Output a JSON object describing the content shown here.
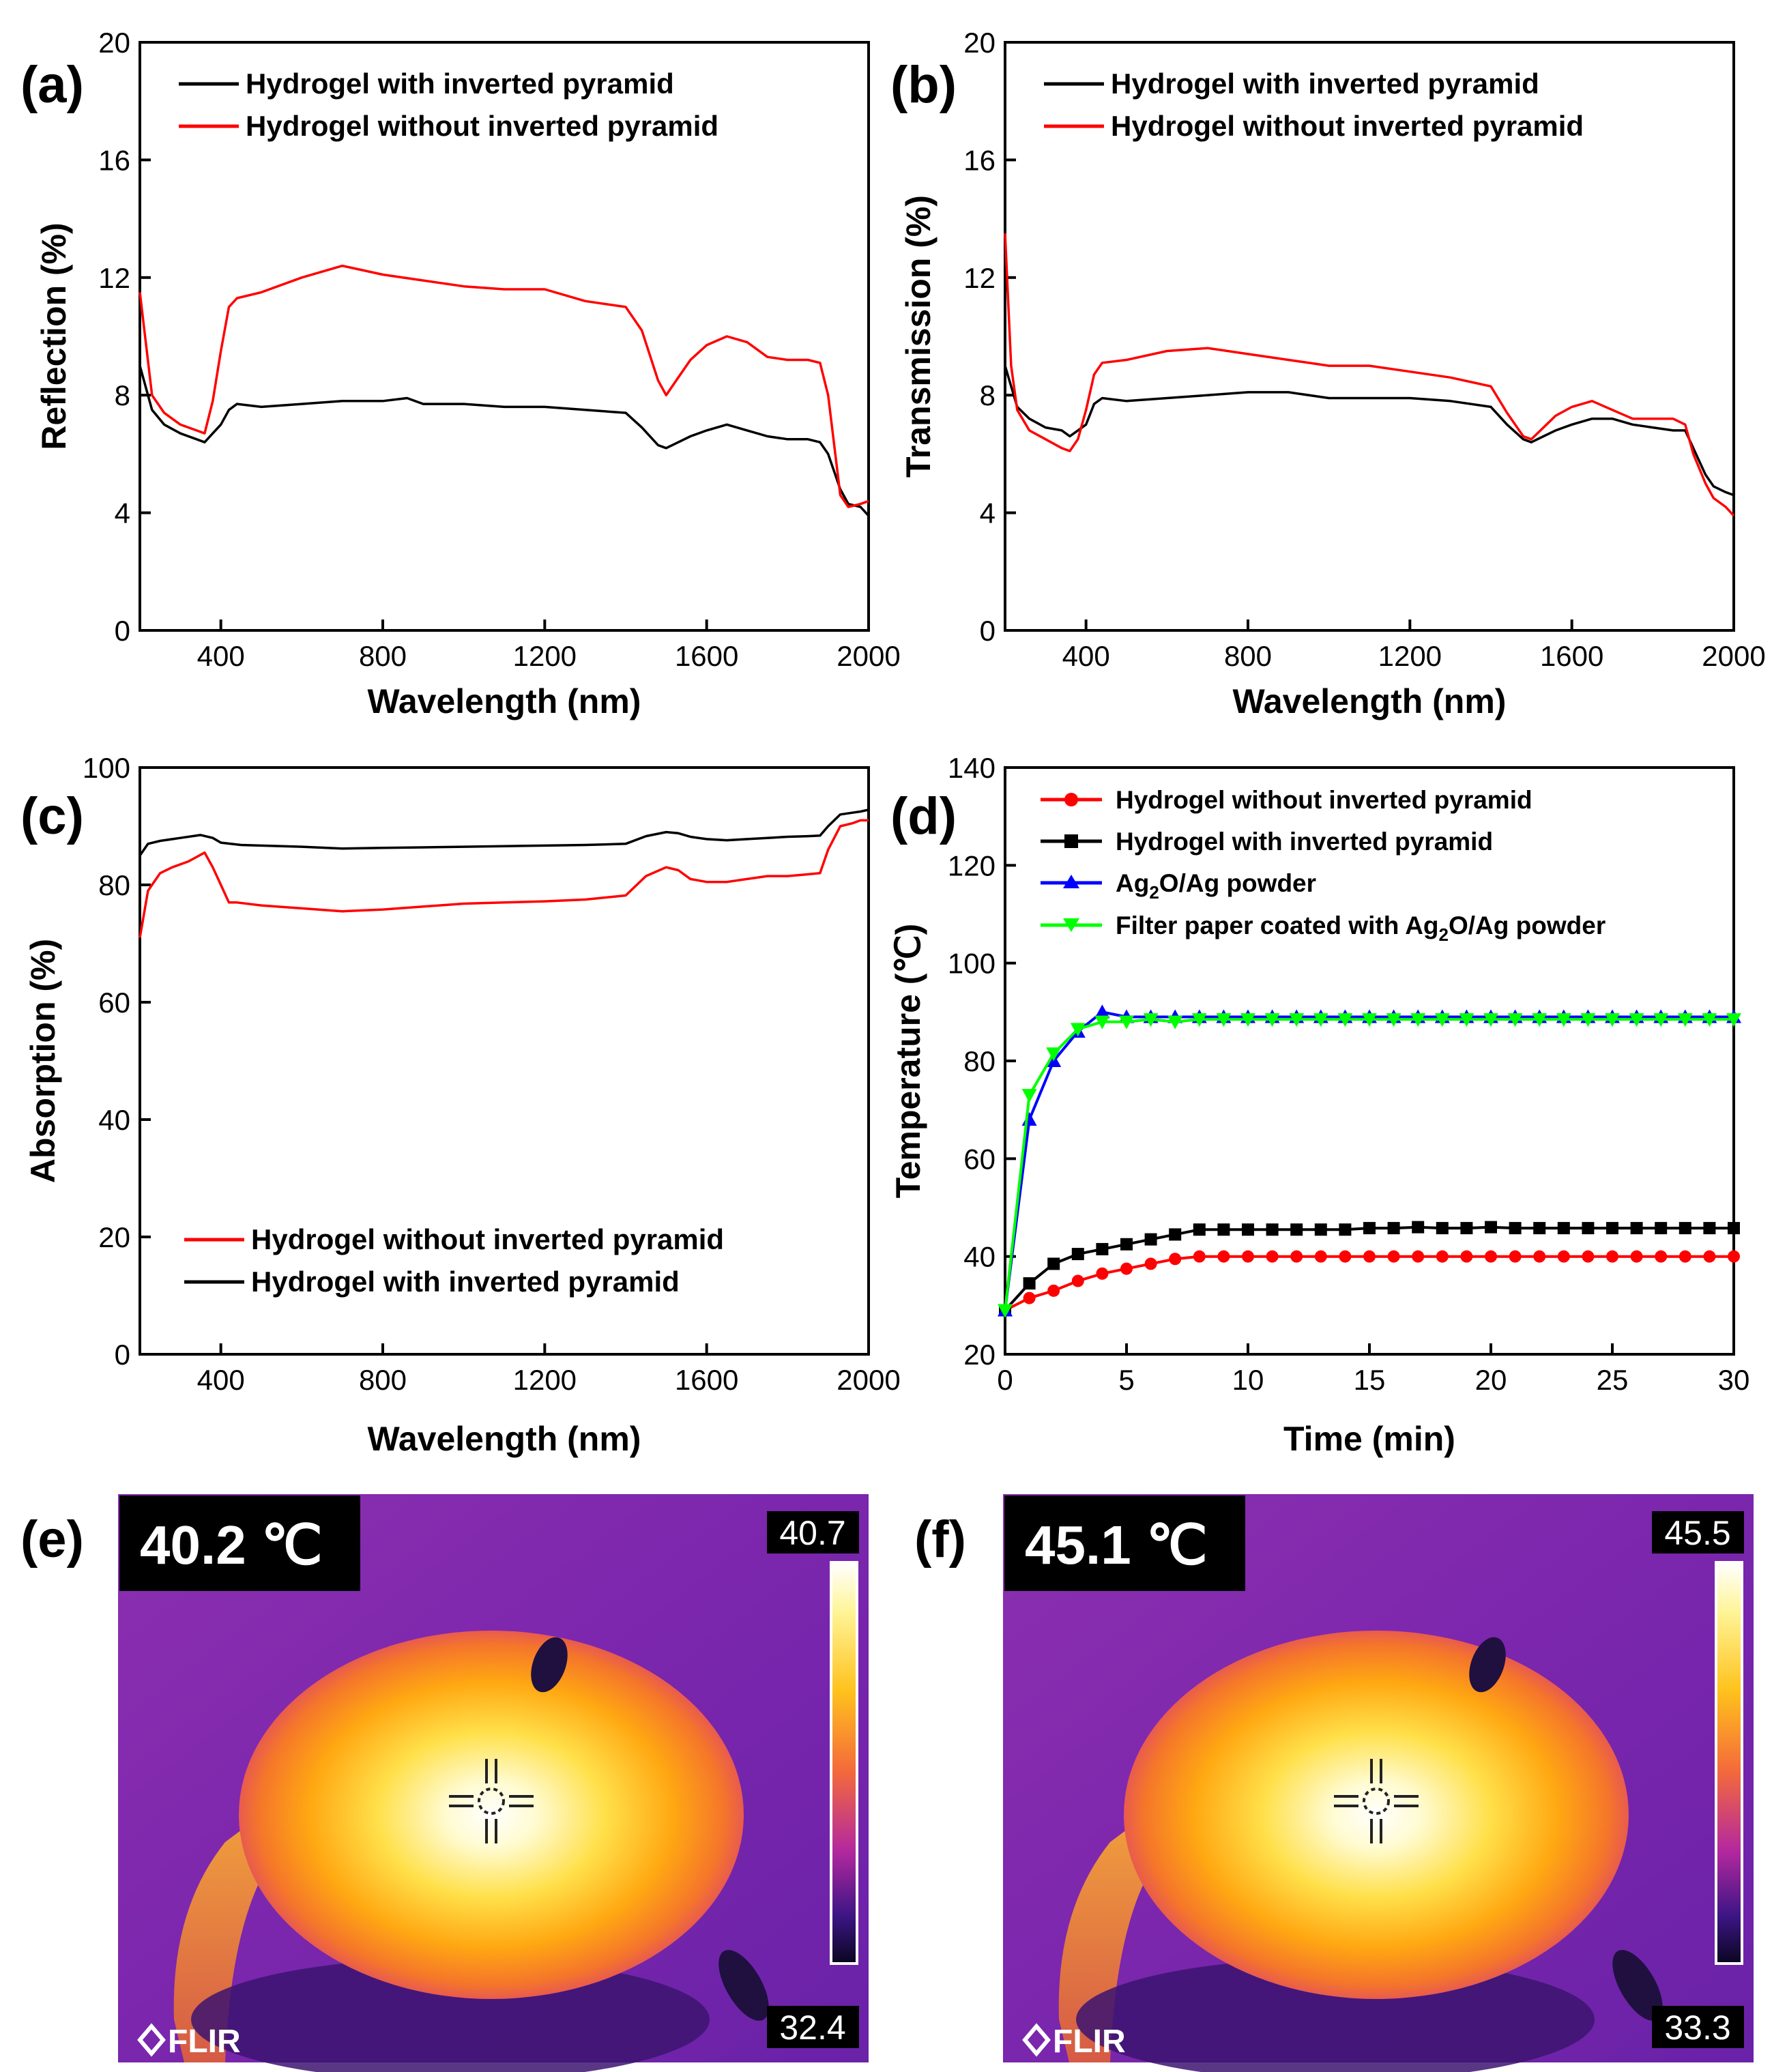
{
  "chart_data": [
    {
      "panel": "(a)",
      "type": "line",
      "xlabel": "Wavelength (nm)",
      "ylabel": "Reflection (%)",
      "xlim": [
        200,
        2000
      ],
      "ylim": [
        0,
        20
      ],
      "xticks": [
        400,
        800,
        1200,
        1600,
        2000
      ],
      "yticks": [
        0,
        4,
        8,
        12,
        16,
        20
      ],
      "legend_position": "top-left",
      "series": [
        {
          "name": "Hydrogel with inverted pyramid",
          "color": "#000000",
          "x": [
            200,
            230,
            260,
            300,
            340,
            360,
            380,
            400,
            420,
            440,
            500,
            600,
            700,
            800,
            860,
            900,
            1000,
            1100,
            1200,
            1300,
            1400,
            1440,
            1480,
            1500,
            1530,
            1560,
            1600,
            1650,
            1700,
            1750,
            1800,
            1850,
            1880,
            1900,
            1930,
            1950,
            1980,
            2000
          ],
          "y": [
            9.0,
            7.5,
            7.0,
            6.7,
            6.5,
            6.4,
            6.7,
            7.0,
            7.5,
            7.7,
            7.6,
            7.7,
            7.8,
            7.8,
            7.9,
            7.7,
            7.7,
            7.6,
            7.6,
            7.5,
            7.4,
            6.9,
            6.3,
            6.2,
            6.4,
            6.6,
            6.8,
            7.0,
            6.8,
            6.6,
            6.5,
            6.5,
            6.4,
            6.0,
            4.8,
            4.3,
            4.2,
            3.9
          ]
        },
        {
          "name": "Hydrogel without inverted pyramid",
          "color": "#ff0000",
          "x": [
            200,
            230,
            260,
            300,
            340,
            360,
            380,
            400,
            420,
            440,
            500,
            600,
            700,
            800,
            900,
            1000,
            1100,
            1200,
            1300,
            1400,
            1440,
            1480,
            1500,
            1530,
            1560,
            1600,
            1650,
            1700,
            1750,
            1800,
            1850,
            1880,
            1900,
            1930,
            1950,
            1980,
            2000
          ],
          "y": [
            11.5,
            8.0,
            7.4,
            7.0,
            6.8,
            6.7,
            7.8,
            9.5,
            11.0,
            11.3,
            11.5,
            12.0,
            12.4,
            12.1,
            11.9,
            11.7,
            11.6,
            11.6,
            11.2,
            11.0,
            10.2,
            8.5,
            8.0,
            8.6,
            9.2,
            9.7,
            10.0,
            9.8,
            9.3,
            9.2,
            9.2,
            9.1,
            8.0,
            4.6,
            4.2,
            4.3,
            4.4
          ]
        }
      ]
    },
    {
      "panel": "(b)",
      "type": "line",
      "xlabel": "Wavelength (nm)",
      "ylabel": "Transmission (%)",
      "xlim": [
        200,
        2000
      ],
      "ylim": [
        0,
        20
      ],
      "xticks": [
        400,
        800,
        1200,
        1600,
        2000
      ],
      "yticks": [
        0,
        4,
        8,
        12,
        16,
        20
      ],
      "legend_position": "top-left",
      "series": [
        {
          "name": "Hydrogel with inverted pyramid",
          "color": "#000000",
          "x": [
            200,
            230,
            260,
            300,
            340,
            360,
            380,
            400,
            420,
            440,
            500,
            600,
            700,
            800,
            900,
            1000,
            1100,
            1200,
            1300,
            1400,
            1440,
            1480,
            1500,
            1530,
            1560,
            1600,
            1650,
            1700,
            1750,
            1800,
            1850,
            1880,
            1900,
            1930,
            1950,
            1980,
            2000
          ],
          "y": [
            9.0,
            7.6,
            7.2,
            6.9,
            6.8,
            6.6,
            6.8,
            7.0,
            7.7,
            7.9,
            7.8,
            7.9,
            8.0,
            8.1,
            8.1,
            7.9,
            7.9,
            7.9,
            7.8,
            7.6,
            7.0,
            6.5,
            6.4,
            6.6,
            6.8,
            7.0,
            7.2,
            7.2,
            7.0,
            6.9,
            6.8,
            6.8,
            6.2,
            5.3,
            4.9,
            4.7,
            4.6
          ]
        },
        {
          "name": "Hydrogel without inverted pyramid",
          "color": "#ff0000",
          "x": [
            200,
            215,
            230,
            260,
            300,
            340,
            360,
            380,
            400,
            420,
            440,
            500,
            600,
            700,
            800,
            900,
            1000,
            1100,
            1200,
            1300,
            1400,
            1440,
            1480,
            1500,
            1530,
            1560,
            1600,
            1650,
            1700,
            1750,
            1800,
            1850,
            1880,
            1900,
            1930,
            1950,
            1980,
            2000
          ],
          "y": [
            13.5,
            9.0,
            7.5,
            6.8,
            6.5,
            6.2,
            6.1,
            6.5,
            7.5,
            8.7,
            9.1,
            9.2,
            9.5,
            9.6,
            9.4,
            9.2,
            9.0,
            9.0,
            8.8,
            8.6,
            8.3,
            7.4,
            6.6,
            6.5,
            6.9,
            7.3,
            7.6,
            7.8,
            7.5,
            7.2,
            7.2,
            7.2,
            7.0,
            6.0,
            5.0,
            4.5,
            4.2,
            3.9
          ]
        }
      ]
    },
    {
      "panel": "(c)",
      "type": "line",
      "xlabel": "Wavelength (nm)",
      "ylabel": "Absorption (%)",
      "xlim": [
        200,
        2000
      ],
      "ylim": [
        0,
        100
      ],
      "xticks": [
        400,
        800,
        1200,
        1600,
        2000
      ],
      "yticks": [
        0,
        20,
        40,
        60,
        80,
        100
      ],
      "legend_position": "bottom-left",
      "series": [
        {
          "name": "Hydrogel without inverted pyramid",
          "color": "#ff0000",
          "x": [
            200,
            220,
            250,
            280,
            320,
            360,
            380,
            400,
            420,
            440,
            500,
            600,
            700,
            800,
            900,
            1000,
            1100,
            1200,
            1300,
            1400,
            1450,
            1500,
            1530,
            1560,
            1600,
            1650,
            1700,
            1750,
            1800,
            1850,
            1880,
            1900,
            1930,
            1960,
            1980,
            2000
          ],
          "y": [
            71,
            79,
            82,
            83,
            84,
            85.5,
            83,
            80,
            77,
            77,
            76.5,
            76,
            75.5,
            75.8,
            76.3,
            76.8,
            77,
            77.2,
            77.5,
            78.2,
            81.5,
            83,
            82.5,
            81,
            80.5,
            80.5,
            81,
            81.5,
            81.5,
            81.8,
            82,
            86,
            90,
            90.5,
            91,
            91
          ]
        },
        {
          "name": "Hydrogel with inverted pyramid",
          "color": "#000000",
          "x": [
            200,
            220,
            250,
            300,
            350,
            380,
            400,
            450,
            500,
            600,
            700,
            800,
            900,
            1000,
            1100,
            1200,
            1300,
            1400,
            1450,
            1500,
            1530,
            1560,
            1600,
            1650,
            1700,
            1750,
            1800,
            1850,
            1880,
            1900,
            1930,
            1960,
            1980,
            2000
          ],
          "y": [
            85,
            87,
            87.5,
            88,
            88.5,
            88,
            87.2,
            86.8,
            86.7,
            86.5,
            86.2,
            86.3,
            86.4,
            86.5,
            86.6,
            86.7,
            86.8,
            87,
            88.3,
            89,
            88.8,
            88.2,
            87.8,
            87.6,
            87.8,
            88,
            88.2,
            88.3,
            88.4,
            90,
            92,
            92.3,
            92.5,
            92.8
          ]
        }
      ]
    },
    {
      "panel": "(d)",
      "type": "line",
      "xlabel": "Time (min)",
      "ylabel": "Temperature (℃)",
      "xlim": [
        0,
        30
      ],
      "ylim": [
        20,
        140
      ],
      "xticks": [
        0,
        5,
        10,
        15,
        20,
        25,
        30
      ],
      "yticks": [
        20,
        40,
        60,
        80,
        100,
        120,
        140
      ],
      "legend_position": "top-left",
      "series": [
        {
          "name": "Hydrogel without inverted pyramid",
          "color": "#ff0000",
          "marker": "circle",
          "x": [
            0,
            1,
            2,
            3,
            4,
            5,
            6,
            7,
            8,
            9,
            10,
            11,
            12,
            13,
            14,
            15,
            16,
            17,
            18,
            19,
            20,
            21,
            22,
            23,
            24,
            25,
            26,
            27,
            28,
            29,
            30
          ],
          "y": [
            29,
            31.5,
            33,
            35,
            36.5,
            37.5,
            38.5,
            39.5,
            40,
            40,
            40,
            40,
            40,
            40,
            40,
            40,
            40,
            40,
            40,
            40,
            40,
            40,
            40,
            40,
            40,
            40,
            40,
            40,
            40,
            40,
            40
          ]
        },
        {
          "name": "Hydrogel with inverted pyramid",
          "color": "#000000",
          "marker": "square",
          "x": [
            0,
            1,
            2,
            3,
            4,
            5,
            6,
            7,
            8,
            9,
            10,
            11,
            12,
            13,
            14,
            15,
            16,
            17,
            18,
            19,
            20,
            21,
            22,
            23,
            24,
            25,
            26,
            27,
            28,
            29,
            30
          ],
          "y": [
            29,
            34.5,
            38.5,
            40.5,
            41.5,
            42.5,
            43.5,
            44.5,
            45.5,
            45.5,
            45.5,
            45.5,
            45.5,
            45.5,
            45.5,
            45.8,
            45.8,
            46,
            45.8,
            45.8,
            46,
            45.8,
            45.8,
            45.8,
            45.8,
            45.8,
            45.8,
            45.8,
            45.8,
            45.8,
            45.8
          ]
        },
        {
          "name": "Ag₂O/Ag powder",
          "color": "#0000ff",
          "marker": "triangle-up",
          "x": [
            0,
            1,
            2,
            3,
            4,
            5,
            6,
            7,
            8,
            9,
            10,
            11,
            12,
            13,
            14,
            15,
            16,
            17,
            18,
            19,
            20,
            21,
            22,
            23,
            24,
            25,
            26,
            27,
            28,
            29,
            30
          ],
          "y": [
            29,
            68,
            80,
            86,
            90,
            89,
            89,
            89,
            89,
            89,
            89,
            89,
            89,
            89,
            89,
            89,
            89,
            89,
            89,
            89,
            89,
            89,
            89,
            89,
            89,
            89,
            89,
            89,
            89,
            89,
            89
          ]
        },
        {
          "name": "Filter paper coated with Ag₂O/Ag powder",
          "color": "#00ff00",
          "marker": "triangle-down",
          "x": [
            0,
            1,
            2,
            3,
            4,
            5,
            6,
            7,
            8,
            9,
            10,
            11,
            12,
            13,
            14,
            15,
            16,
            17,
            18,
            19,
            20,
            21,
            22,
            23,
            24,
            25,
            26,
            27,
            28,
            29,
            30
          ],
          "y": [
            29,
            73,
            81.5,
            86.5,
            88,
            88,
            88.5,
            88,
            88.5,
            88.5,
            88.5,
            88.5,
            88.5,
            88.5,
            88.5,
            88.5,
            88.5,
            88.5,
            88.5,
            88.5,
            88.5,
            88.5,
            88.5,
            88.5,
            88.5,
            88.5,
            88.5,
            88.5,
            88.5,
            88.5,
            88.5
          ]
        }
      ]
    }
  ],
  "legends": {
    "a": [
      "Hydrogel with inverted pyramid",
      "Hydrogel without inverted pyramid"
    ],
    "b": [
      "Hydrogel with inverted pyramid",
      "Hydrogel without inverted pyramid"
    ],
    "c": [
      "Hydrogel without inverted pyramid",
      "Hydrogel with inverted pyramid"
    ],
    "d": [
      "Hydrogel without inverted pyramid",
      "Hydrogel with inverted pyramid",
      "Ag",
      "2",
      "O/Ag powder",
      "Filter paper coated with Ag",
      "O/Ag powder"
    ]
  },
  "thermal_images": [
    {
      "panel": "(e)",
      "spot_temp": "40.2 ℃",
      "scale_max": "40.7",
      "scale_min": "32.4",
      "brand": "FLIR"
    },
    {
      "panel": "(f)",
      "spot_temp": "45.1 ℃",
      "scale_max": "45.5",
      "scale_min": "33.3",
      "brand": "FLIR"
    }
  ],
  "colors": {
    "red": "#ff0000",
    "black": "#000000",
    "blue": "#0000ff",
    "green": "#00ff00"
  }
}
